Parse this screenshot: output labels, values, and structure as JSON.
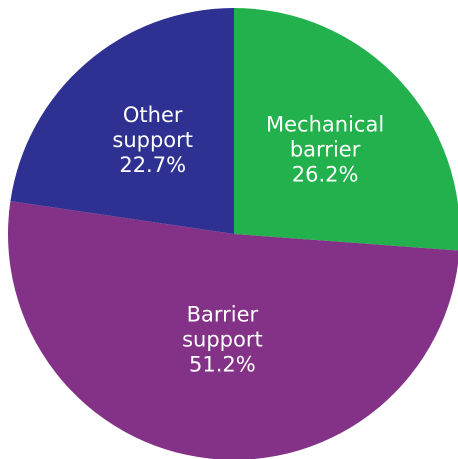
{
  "chart_data": {
    "type": "pie",
    "title": "",
    "start_angle_deg": 0,
    "direction": "clockwise",
    "slices": [
      {
        "label_lines": [
          "Mechanical",
          "barrier",
          "26.2%"
        ],
        "value": 26.2,
        "color": "#22b14c"
      },
      {
        "label_lines": [
          "Barrier",
          "support",
          "51.2%"
        ],
        "value": 51.2,
        "color": "#833287"
      },
      {
        "label_lines": [
          "Other",
          "support",
          "22.7%"
        ],
        "value": 22.7,
        "color": "#2e3192"
      }
    ]
  }
}
